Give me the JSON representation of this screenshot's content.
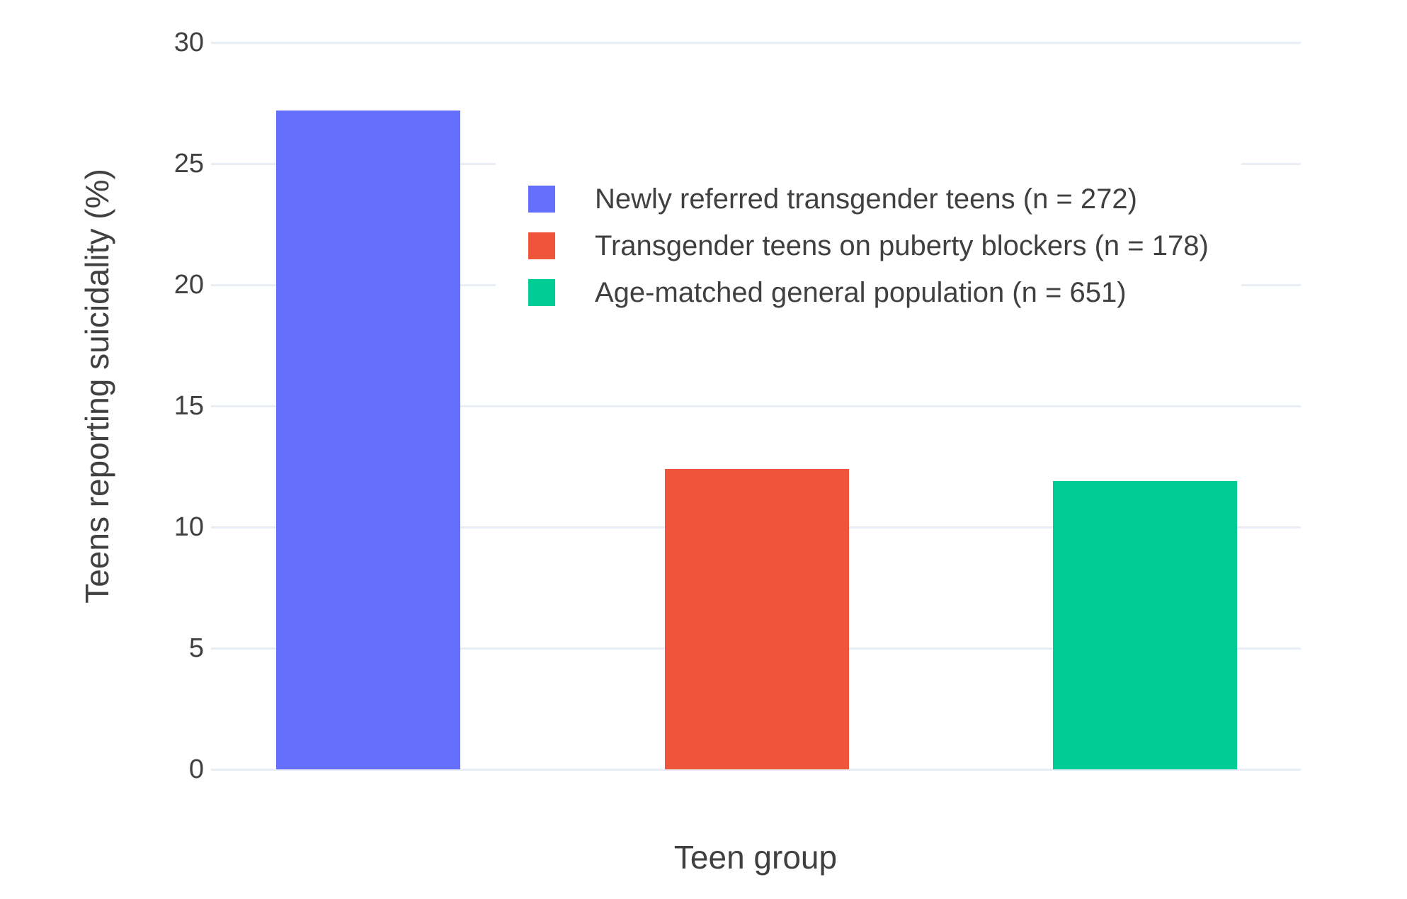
{
  "chart_data": {
    "type": "bar",
    "title": "",
    "xlabel": "Teen group",
    "ylabel": "Teens reporting suicidality (%)",
    "categories": [
      "Newly referred transgender teens (n = 272)",
      "Transgender teens on puberty blockers (n = 178)",
      "Age-matched general population (n = 651)"
    ],
    "series": [
      {
        "name": "Newly referred transgender teens (n = 272)",
        "value": 27.2,
        "color": "#636EFA"
      },
      {
        "name": "Transgender teens on puberty blockers (n = 178)",
        "value": 12.4,
        "color": "#EF553B"
      },
      {
        "name": "Age-matched general population (n = 651)",
        "value": 11.9,
        "color": "#00CC96"
      }
    ],
    "ylim": [
      0,
      30
    ],
    "yticks": [
      0,
      5,
      10,
      15,
      20,
      25,
      30
    ],
    "grid": true,
    "legend_position": "inside-top-right"
  },
  "colors": {
    "gridline": "#E9EEF6",
    "zeroline": "#E9EEF6",
    "text": "#404040",
    "background": "#FFFFFF"
  }
}
